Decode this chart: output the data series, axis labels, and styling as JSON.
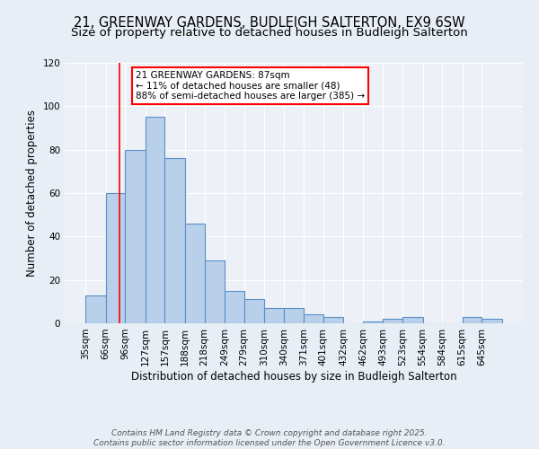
{
  "title": "21, GREENWAY GARDENS, BUDLEIGH SALTERTON, EX9 6SW",
  "subtitle": "Size of property relative to detached houses in Budleigh Salterton",
  "xlabel": "Distribution of detached houses by size in Budleigh Salterton",
  "ylabel": "Number of detached properties",
  "bar_values": [
    13,
    60,
    80,
    95,
    76,
    46,
    29,
    15,
    11,
    7,
    7,
    4,
    3,
    0,
    1,
    2,
    3,
    0,
    0,
    3,
    2
  ],
  "bin_labels": [
    "35sqm",
    "66sqm",
    "96sqm",
    "127sqm",
    "157sqm",
    "188sqm",
    "218sqm",
    "249sqm",
    "279sqm",
    "310sqm",
    "340sqm",
    "371sqm",
    "401sqm",
    "432sqm",
    "462sqm",
    "493sqm",
    "523sqm",
    "554sqm",
    "584sqm",
    "615sqm",
    "645sqm"
  ],
  "bin_edges": [
    35,
    66,
    96,
    127,
    157,
    188,
    218,
    249,
    279,
    310,
    340,
    371,
    401,
    432,
    462,
    493,
    523,
    554,
    584,
    615,
    645,
    676
  ],
  "bar_color": "#b8d0ea",
  "bar_edgecolor": "#5b8fc9",
  "red_line_x": 87,
  "ylim": [
    0,
    120
  ],
  "yticks": [
    0,
    20,
    40,
    60,
    80,
    100,
    120
  ],
  "annotation_title": "21 GREENWAY GARDENS: 87sqm",
  "annotation_line1": "← 11% of detached houses are smaller (48)",
  "annotation_line2": "88% of semi-detached houses are larger (385) →",
  "footer1": "Contains HM Land Registry data © Crown copyright and database right 2025.",
  "footer2": "Contains public sector information licensed under the Open Government Licence v3.0.",
  "background_color": "#e8eef5",
  "plot_bg_color": "#edf1f7",
  "title_fontsize": 10.5,
  "subtitle_fontsize": 9.5,
  "axis_label_fontsize": 8.5,
  "tick_fontsize": 7.5,
  "annotation_fontsize": 7.5,
  "footer_fontsize": 6.5
}
